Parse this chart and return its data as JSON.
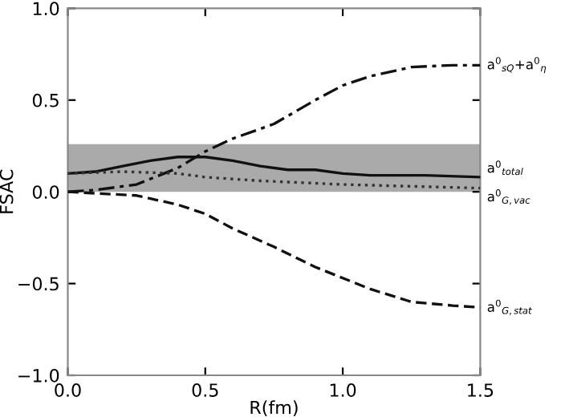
{
  "chart_data": {
    "type": "line",
    "xlabel": "R(fm)",
    "ylabel": "FSAC",
    "xlim": [
      0,
      1.5
    ],
    "ylim": [
      -1,
      1
    ],
    "xticks": [
      {
        "value": 0,
        "label": "0.0"
      },
      0.5,
      {
        "value": 1,
        "label": "1.0"
      },
      1.5
    ],
    "yticks": [
      {
        "value": -1,
        "label": "−1.0"
      },
      {
        "value": -0.5,
        "label": "−0.5"
      },
      {
        "value": 0,
        "label": "0.0"
      },
      0.5,
      {
        "value": 1,
        "label": "1.0"
      }
    ],
    "grid": false,
    "legend": false,
    "marker": "none",
    "bands": [
      {
        "axis": "y",
        "from": 0,
        "to": 0.26,
        "color": "#aaaaaa"
      }
    ],
    "series": [
      {
        "name": "a$^{0}$$_{sQ}$+a$^{0}$$_{η}$",
        "color": "#111111",
        "line_style": "dashdot",
        "x": [
          0,
          0.1,
          0.25,
          0.4,
          0.5,
          0.6,
          0.75,
          0.9,
          1.0,
          1.1,
          1.25,
          1.4,
          1.5
        ],
        "values": [
          0,
          0.01,
          0.04,
          0.13,
          0.22,
          0.29,
          0.37,
          0.5,
          0.58,
          0.63,
          0.68,
          0.69,
          0.69
        ]
      },
      {
        "name": "a$^{0}$$_{total}$",
        "color": "#111111",
        "line_style": "solid",
        "x": [
          0,
          0.1,
          0.2,
          0.3,
          0.4,
          0.5,
          0.6,
          0.7,
          0.8,
          0.9,
          1.0,
          1.1,
          1.3,
          1.5
        ],
        "values": [
          0.1,
          0.11,
          0.14,
          0.17,
          0.19,
          0.19,
          0.17,
          0.14,
          0.12,
          0.12,
          0.1,
          0.09,
          0.09,
          0.08
        ]
      },
      {
        "name": "a$^{0}$$_{G,vac}$",
        "color": "#333333",
        "line_style": "dotted",
        "x": [
          0,
          0.2,
          0.4,
          0.5,
          0.7,
          1.0,
          1.25,
          1.5
        ],
        "values": [
          0.1,
          0.11,
          0.1,
          0.08,
          0.06,
          0.04,
          0.03,
          0.02
        ]
      },
      {
        "name": "a$^{0}$$_{G,stat}$",
        "color": "#111111",
        "line_style": "dashed",
        "x": [
          0,
          0.25,
          0.4,
          0.5,
          0.6,
          0.75,
          0.9,
          1.0,
          1.1,
          1.25,
          1.4,
          1.5
        ],
        "values": [
          0,
          -0.02,
          -0.07,
          -0.12,
          -0.2,
          -0.3,
          -0.41,
          -0.47,
          -0.53,
          -0.6,
          -0.62,
          -0.63
        ]
      }
    ]
  }
}
